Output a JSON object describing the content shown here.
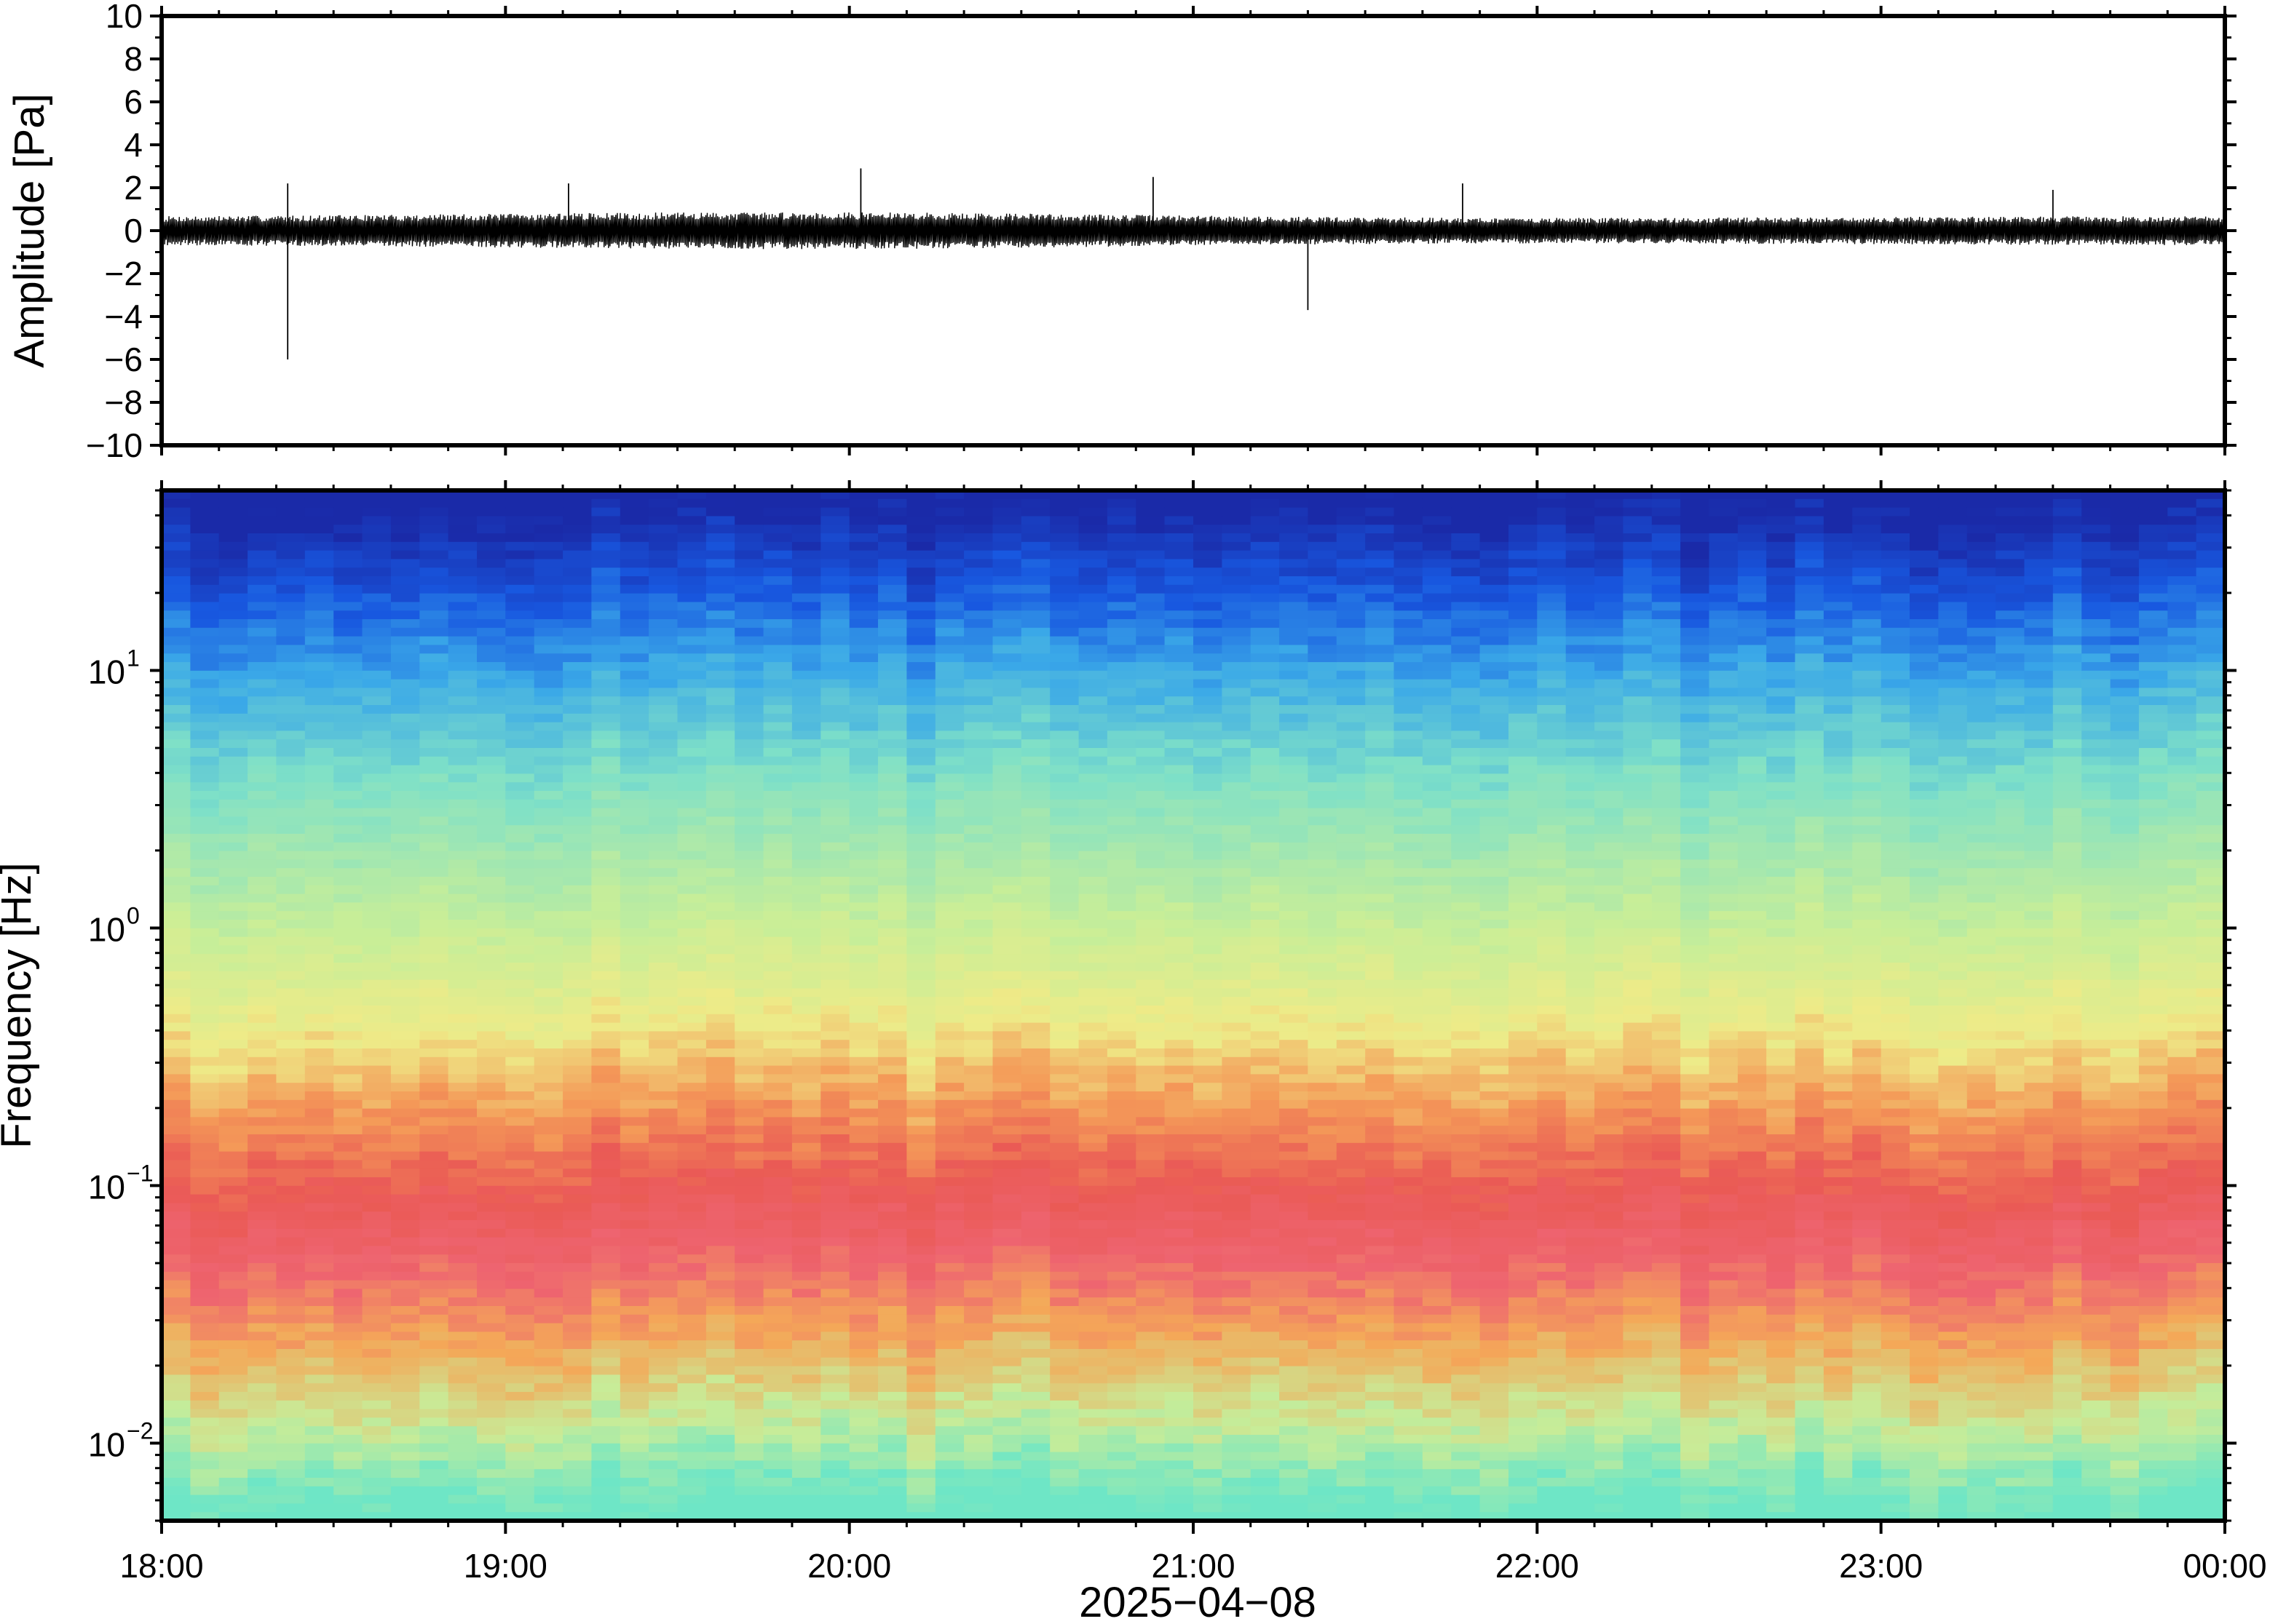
{
  "chart_data": [
    {
      "type": "line",
      "panel": "waveform",
      "ylabel": "Amplitude [Pa]",
      "ylim": [
        -10,
        10
      ],
      "yticks": [
        10,
        8,
        6,
        4,
        2,
        0,
        -2,
        -4,
        -6,
        -8,
        -10
      ],
      "ytick_labels": [
        "10",
        "8",
        "6",
        "4",
        "2",
        "0",
        "−2",
        "−4",
        "−6",
        "−8",
        "−10"
      ],
      "x_range": [
        "18:00",
        "00:00"
      ],
      "baseline_half_range_pa": 0.8,
      "notable_peaks": [
        {
          "time": "18:22",
          "value": -6.0
        },
        {
          "time": "18:22",
          "value": 2.2
        },
        {
          "time": "19:11",
          "value": 2.2
        },
        {
          "time": "20:02",
          "value": 2.9
        },
        {
          "time": "20:53",
          "value": 2.5
        },
        {
          "time": "21:20",
          "value": -3.7
        },
        {
          "time": "21:47",
          "value": 2.2
        },
        {
          "time": "23:30",
          "value": 1.9
        }
      ]
    },
    {
      "type": "heatmap",
      "panel": "spectrogram",
      "ylabel": "Frequency [Hz]",
      "yscale": "log",
      "ylim": [
        0.005,
        50
      ],
      "yticks": [
        {
          "base": "10",
          "exp": "1",
          "value": 10
        },
        {
          "base": "10",
          "exp": "0",
          "value": 1
        },
        {
          "base": "10",
          "exp": "−1",
          "value": 0.1
        },
        {
          "base": "10",
          "exp": "−2",
          "value": 0.01
        }
      ],
      "colormap": [
        "#2a1a8a",
        "#1030c8",
        "#2a8ef0",
        "#5ed6e6",
        "#8ee8b8",
        "#e8f08a",
        "#f6c060",
        "#f28a50",
        "#e85a50",
        "#f06a7a"
      ],
      "band_profile": [
        {
          "freq": 40,
          "color": "#1a2aa8"
        },
        {
          "freq": 20,
          "color": "#1858e0"
        },
        {
          "freq": 10,
          "color": "#3aa8e8"
        },
        {
          "freq": 4,
          "color": "#7ee0c8"
        },
        {
          "freq": 1,
          "color": "#c8ee98"
        },
        {
          "freq": 0.4,
          "color": "#eeeb88"
        },
        {
          "freq": 0.2,
          "color": "#f49a58"
        },
        {
          "freq": 0.1,
          "color": "#ea5a55"
        },
        {
          "freq": 0.05,
          "color": "#ee6470"
        },
        {
          "freq": 0.025,
          "color": "#f4a858"
        },
        {
          "freq": 0.012,
          "color": "#c8ec98"
        },
        {
          "freq": 0.006,
          "color": "#6ee6c6"
        }
      ]
    }
  ],
  "x_axis": {
    "ticks": [
      "18:00",
      "19:00",
      "20:00",
      "21:00",
      "22:00",
      "23:00",
      "00:00"
    ],
    "date_label": "2025−04−08"
  }
}
